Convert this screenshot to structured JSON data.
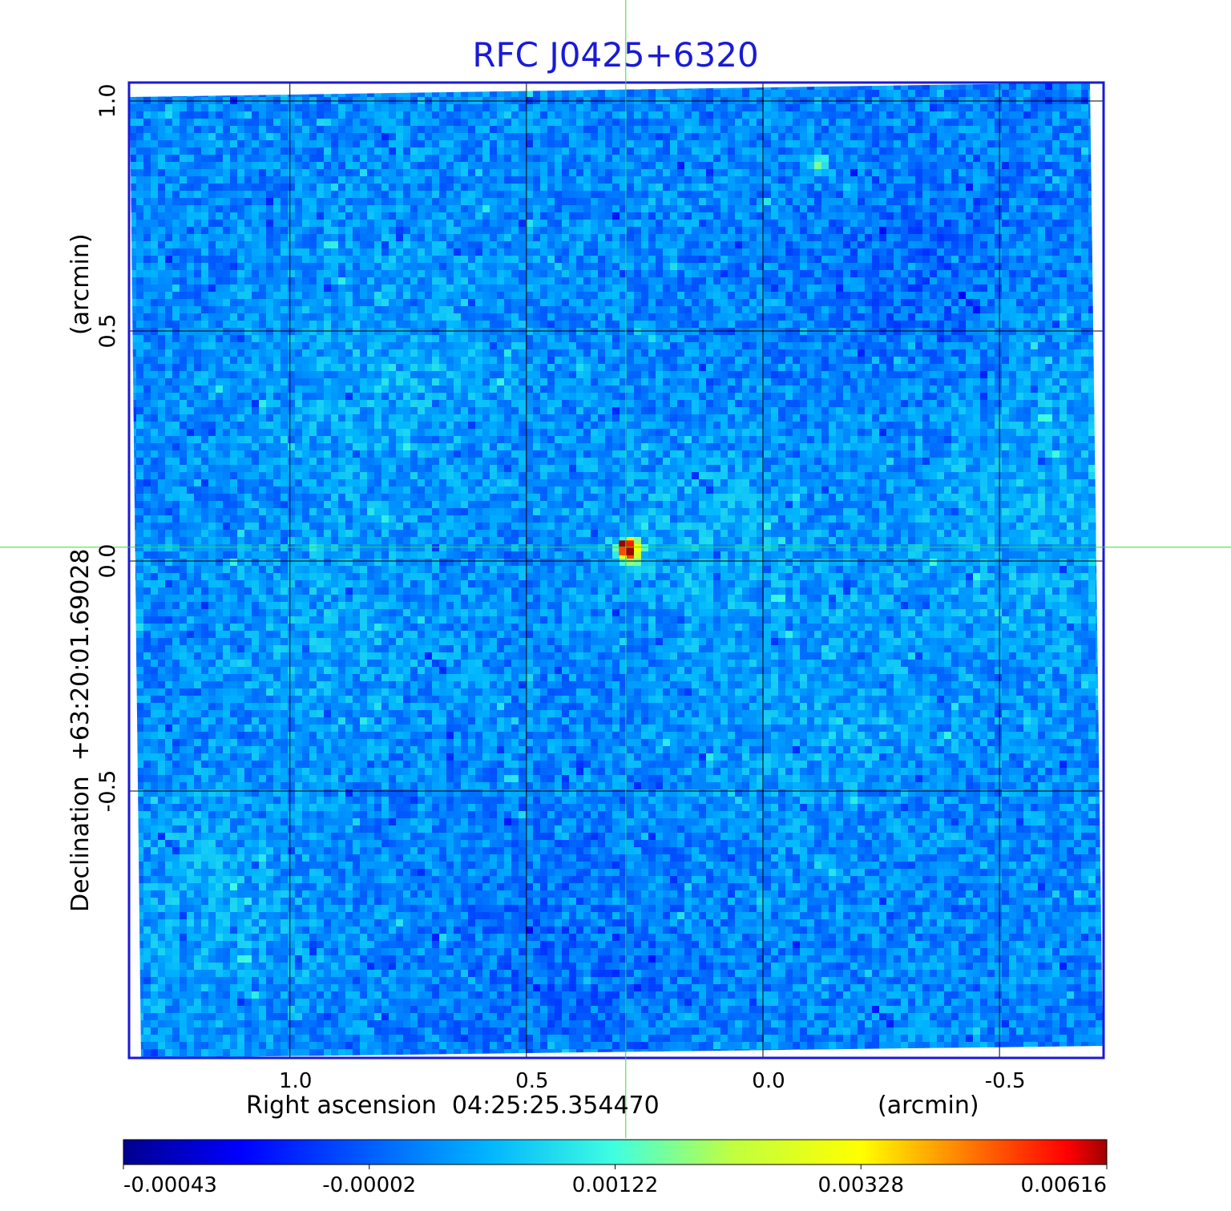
{
  "chart_data": {
    "type": "heatmap",
    "title": "RFC J0425+6320",
    "xlabel": "Right ascension  04:25:25.354470",
    "x_unit": "(arcmin)",
    "ylabel": "Declination  +63:20:01.69028",
    "y_unit": "(arcmin)",
    "x_ticks": [
      "1.0",
      "0.5",
      "0.0",
      "-0.5"
    ],
    "y_ticks": [
      "1.0",
      "0.5",
      "0.0",
      "-0.5"
    ],
    "xlim": [
      1.34,
      -0.72
    ],
    "ylim": [
      -1.08,
      1.04
    ],
    "grid": true,
    "crosshair": [
      0.29,
      0.03
    ],
    "colorbar": {
      "ticks": [
        "-0.00043",
        "-0.00002",
        "0.00122",
        "0.00328",
        "0.00616"
      ],
      "min": -0.00043,
      "max": 0.00616
    },
    "sources": [
      {
        "x": 0.29,
        "y": 0.03,
        "value": 0.00616
      },
      {
        "x": -0.11,
        "y": 0.87,
        "value": 0.00122
      }
    ],
    "colors": {
      "title": "#1a1ad6",
      "frame": "#1a1ad6",
      "grid": "#000000",
      "crosshair": "#33dd33",
      "colormap": [
        "#00008f",
        "#0000ff",
        "#00ffff",
        "#ffff00",
        "#ff0000",
        "#800000"
      ]
    }
  }
}
